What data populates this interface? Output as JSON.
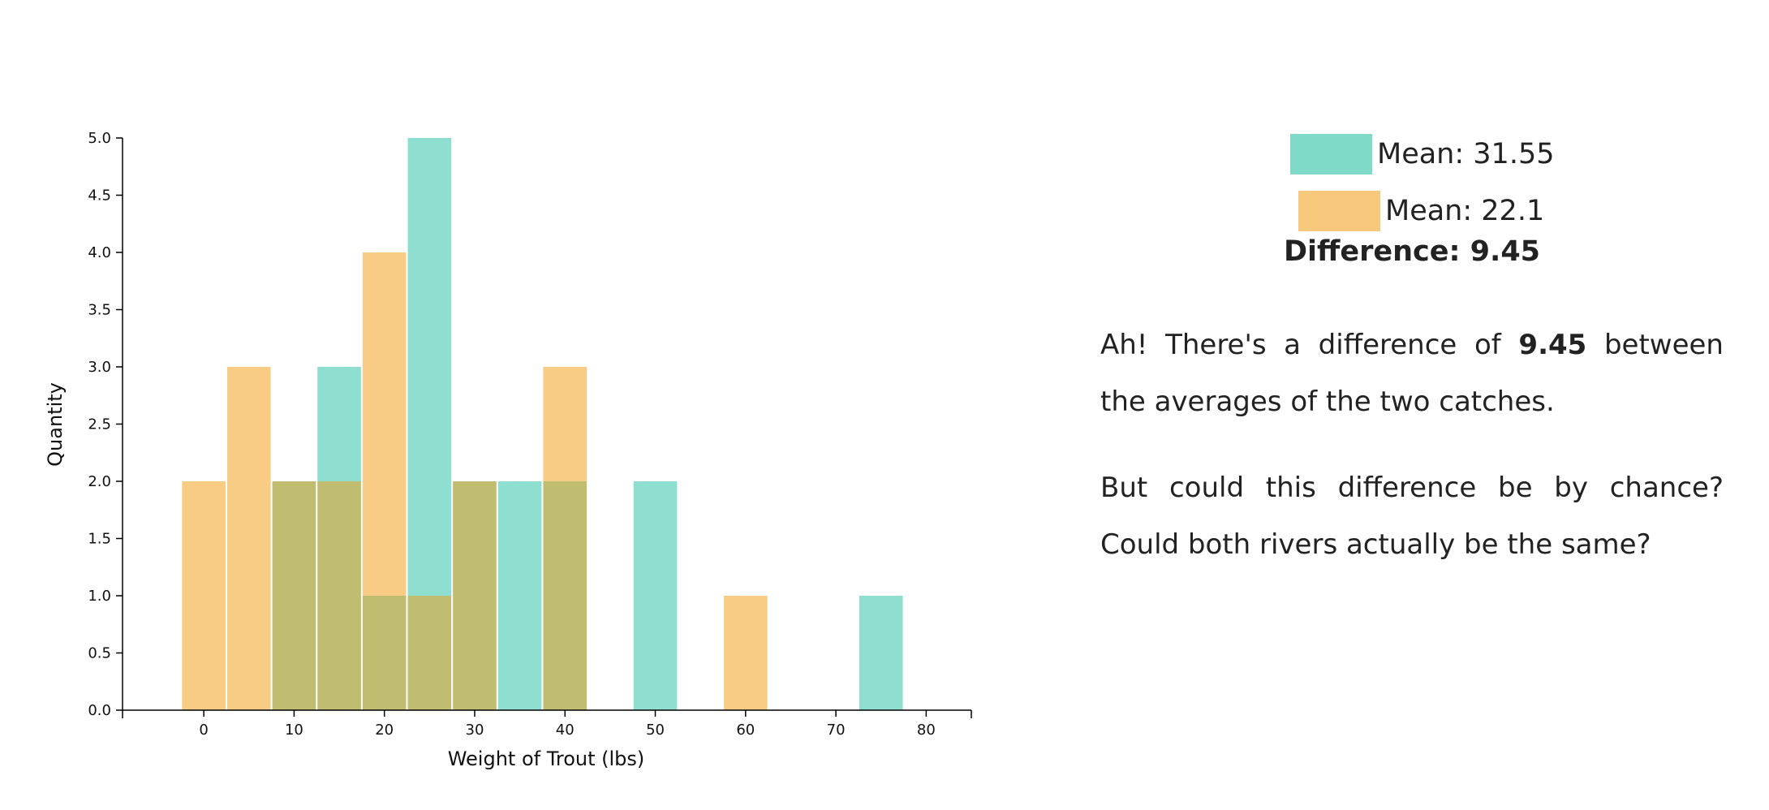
{
  "chart_data": {
    "type": "bar",
    "xlabel": "Weight of Trout (lbs)",
    "ylabel": "Quantity",
    "xlim": [
      -9,
      85
    ],
    "ylim": [
      0,
      5
    ],
    "x_ticks": [
      0,
      10,
      20,
      30,
      40,
      50,
      60,
      70,
      80
    ],
    "y_ticks": [
      "0.0",
      "0.5",
      "1.0",
      "1.5",
      "2.0",
      "2.5",
      "3.0",
      "3.5",
      "4.0",
      "4.5",
      "5.0"
    ],
    "bin_width": 5,
    "series": [
      {
        "name": "Mean: 31.55",
        "color": "#8fdfd0",
        "bins": [
          {
            "x": 10,
            "value": 2
          },
          {
            "x": 15,
            "value": 3
          },
          {
            "x": 20,
            "value": 1
          },
          {
            "x": 25,
            "value": 5
          },
          {
            "x": 30,
            "value": 2
          },
          {
            "x": 35,
            "value": 2
          },
          {
            "x": 40,
            "value": 2
          },
          {
            "x": 50,
            "value": 2
          },
          {
            "x": 75,
            "value": 1
          }
        ]
      },
      {
        "name": "Mean: 22.1",
        "color": "#f8cc85",
        "bins": [
          {
            "x": 0,
            "value": 2
          },
          {
            "x": 5,
            "value": 3
          },
          {
            "x": 10,
            "value": 2
          },
          {
            "x": 15,
            "value": 2
          },
          {
            "x": 20,
            "value": 4
          },
          {
            "x": 25,
            "value": 1
          },
          {
            "x": 30,
            "value": 2
          },
          {
            "x": 40,
            "value": 3
          },
          {
            "x": 60,
            "value": 1
          }
        ]
      }
    ],
    "overlap_color": "#c0bc70",
    "legend_position": "right"
  },
  "legend": {
    "series_a": {
      "label": "Mean: 31.55",
      "color": "#7fdac8"
    },
    "series_b": {
      "label": "Mean: 22.1",
      "color": "#f8c87c"
    },
    "difference": "Difference: 9.45"
  },
  "explanation": {
    "p1_before": "Ah! There's a difference of ",
    "p1_bold": "9.45",
    "p1_after": " between the averages of the two catches.",
    "p2": "But could this difference be by chance? Could both rivers actually be the same?"
  }
}
